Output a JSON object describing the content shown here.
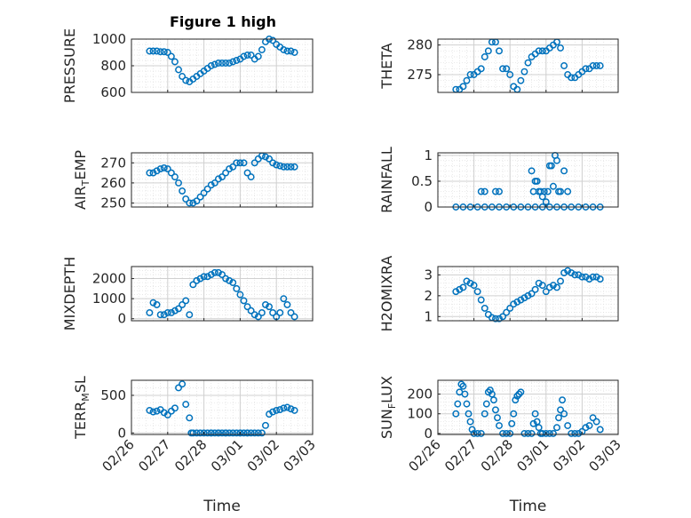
{
  "figure": {
    "title": "Figure 1 high"
  },
  "colors": {
    "marker": "#0072BD",
    "axis": "#262626",
    "grid": "#dfdfdf"
  },
  "chart_data": [
    {
      "type": "scatter",
      "ylabel": "PRESSURE",
      "title": "Figure 1 high",
      "ylim": [
        600,
        1000
      ],
      "yticks": [
        600,
        800,
        1000
      ],
      "ytick_labels": [
        "600",
        "800",
        "1000"
      ],
      "xlim": [
        0,
        5
      ],
      "x_tick_labels": [
        "02/26",
        "02/27",
        "02/28",
        "03/01",
        "03/02",
        "03/03"
      ],
      "x_tick_labels_visible": false,
      "grid": true,
      "x": [
        0.5,
        0.6,
        0.7,
        0.8,
        0.9,
        1.0,
        1.1,
        1.2,
        1.3,
        1.4,
        1.5,
        1.6,
        1.7,
        1.8,
        1.9,
        2.0,
        2.1,
        2.2,
        2.3,
        2.4,
        2.5,
        2.6,
        2.7,
        2.8,
        2.9,
        3.0,
        3.1,
        3.2,
        3.3,
        3.4,
        3.5,
        3.6,
        3.7,
        3.8,
        3.9,
        4.0,
        4.1,
        4.2,
        4.3,
        4.4,
        4.5
      ],
      "y": [
        910,
        910,
        910,
        905,
        905,
        900,
        870,
        830,
        770,
        720,
        690,
        680,
        700,
        720,
        740,
        760,
        780,
        800,
        810,
        820,
        820,
        820,
        820,
        830,
        840,
        850,
        870,
        880,
        880,
        850,
        870,
        920,
        980,
        1000,
        990,
        960,
        940,
        920,
        910,
        910,
        900
      ]
    },
    {
      "type": "scatter",
      "ylabel": "THETA",
      "ylim": [
        272,
        281
      ],
      "yticks": [
        275,
        280
      ],
      "ytick_labels": [
        "275",
        "280"
      ],
      "xlim": [
        0,
        5
      ],
      "x_tick_labels": [
        "02/26",
        "02/27",
        "02/28",
        "03/01",
        "03/02",
        "03/03"
      ],
      "x_tick_labels_visible": false,
      "grid": true,
      "x": [
        0.5,
        0.6,
        0.7,
        0.8,
        0.9,
        1.0,
        1.1,
        1.2,
        1.3,
        1.4,
        1.5,
        1.6,
        1.7,
        1.8,
        1.9,
        2.0,
        2.1,
        2.2,
        2.3,
        2.4,
        2.5,
        2.6,
        2.7,
        2.8,
        2.9,
        3.0,
        3.1,
        3.2,
        3.3,
        3.4,
        3.5,
        3.6,
        3.7,
        3.8,
        3.9,
        4.0,
        4.1,
        4.2,
        4.3,
        4.4,
        4.5
      ],
      "y": [
        272.5,
        272.5,
        273,
        274,
        275,
        275,
        275.5,
        276,
        278,
        279,
        280.5,
        280.5,
        279,
        276,
        276,
        275,
        273,
        272.5,
        274,
        275.5,
        277,
        278,
        278.5,
        279,
        279,
        279,
        279.5,
        280,
        280.5,
        279.5,
        276.5,
        275,
        274.5,
        274.5,
        275,
        275.5,
        276,
        276,
        276.5,
        276.5,
        276.5
      ]
    },
    {
      "type": "scatter",
      "ylabel": "AIR_TEMP",
      "ylim": [
        248,
        275
      ],
      "yticks": [
        250,
        260,
        270
      ],
      "ytick_labels": [
        "250",
        "260",
        "270"
      ],
      "xlim": [
        0,
        5
      ],
      "x_tick_labels": [
        "02/26",
        "02/27",
        "02/28",
        "03/01",
        "03/02",
        "03/03"
      ],
      "x_tick_labels_visible": false,
      "grid": true,
      "x": [
        0.5,
        0.6,
        0.7,
        0.8,
        0.9,
        1.0,
        1.1,
        1.2,
        1.3,
        1.4,
        1.5,
        1.6,
        1.7,
        1.8,
        1.9,
        2.0,
        2.1,
        2.2,
        2.3,
        2.4,
        2.5,
        2.6,
        2.7,
        2.8,
        2.9,
        3.0,
        3.1,
        3.2,
        3.3,
        3.4,
        3.5,
        3.6,
        3.7,
        3.8,
        3.9,
        4.0,
        4.1,
        4.2,
        4.3,
        4.4,
        4.5
      ],
      "y": [
        265,
        265,
        266,
        267,
        267.5,
        267,
        265,
        263,
        260,
        256,
        252,
        250,
        250,
        251,
        253,
        255,
        257,
        259,
        260,
        262,
        263,
        265,
        267,
        268,
        270,
        270,
        270,
        265,
        263,
        270,
        272,
        273.5,
        273,
        272,
        270,
        269,
        268.5,
        268,
        268,
        268,
        268
      ]
    },
    {
      "type": "scatter",
      "ylabel": "RAINFALL",
      "ylim": [
        0,
        1.05
      ],
      "yticks": [
        0,
        0.5,
        1
      ],
      "ytick_labels": [
        "0",
        "0.5",
        "1"
      ],
      "xlim": [
        0,
        5
      ],
      "x_tick_labels": [
        "02/26",
        "02/27",
        "02/28",
        "03/01",
        "03/02",
        "03/03"
      ],
      "x_tick_labels_visible": false,
      "grid": true,
      "x": [
        0.5,
        0.7,
        0.9,
        1.1,
        1.3,
        1.5,
        1.7,
        1.9,
        2.1,
        2.3,
        2.5,
        2.7,
        2.9,
        3.1,
        3.3,
        3.5,
        3.7,
        3.9,
        4.1,
        4.3,
        4.5,
        1.2,
        1.3,
        1.6,
        1.7,
        2.6,
        2.65,
        2.7,
        2.75,
        2.8,
        2.85,
        2.9,
        2.95,
        3.0,
        3.05,
        3.1,
        3.15,
        3.2,
        3.25,
        3.3,
        3.35,
        3.4,
        3.5,
        3.6
      ],
      "y": [
        0,
        0,
        0,
        0,
        0,
        0,
        0,
        0,
        0,
        0,
        0,
        0,
        0,
        0,
        0,
        0,
        0,
        0,
        0,
        0,
        0,
        0.3,
        0.3,
        0.3,
        0.3,
        0.7,
        0.3,
        0.5,
        0.5,
        0.3,
        0.3,
        0.2,
        0.3,
        0.1,
        0.3,
        0.8,
        0.8,
        0.4,
        1.0,
        0.9,
        0.3,
        0.3,
        0.7,
        0.3
      ]
    },
    {
      "type": "scatter",
      "ylabel": "MIXDEPTH",
      "ylim": [
        -100,
        2600
      ],
      "yticks": [
        0,
        1000,
        2000
      ],
      "ytick_labels": [
        "0",
        "1000",
        "2000"
      ],
      "xlim": [
        0,
        5
      ],
      "x_tick_labels": [
        "02/26",
        "02/27",
        "02/28",
        "03/01",
        "03/02",
        "03/03"
      ],
      "x_tick_labels_visible": false,
      "grid": true,
      "x": [
        0.5,
        0.6,
        0.7,
        0.8,
        0.9,
        1.0,
        1.1,
        1.2,
        1.3,
        1.4,
        1.5,
        1.6,
        1.7,
        1.8,
        1.9,
        2.0,
        2.1,
        2.2,
        2.3,
        2.4,
        2.5,
        2.6,
        2.7,
        2.8,
        2.9,
        3.0,
        3.1,
        3.2,
        3.3,
        3.4,
        3.5,
        3.6,
        3.7,
        3.8,
        3.9,
        4.0,
        4.1,
        4.2,
        4.3,
        4.4,
        4.5
      ],
      "y": [
        300,
        800,
        700,
        200,
        200,
        300,
        300,
        400,
        500,
        700,
        900,
        200,
        1700,
        1900,
        2000,
        2100,
        2100,
        2200,
        2300,
        2300,
        2200,
        2000,
        1900,
        1800,
        1500,
        1200,
        900,
        600,
        400,
        200,
        100,
        300,
        700,
        600,
        300,
        100,
        300,
        1000,
        700,
        300,
        100
      ]
    },
    {
      "type": "scatter",
      "ylabel": "H2OMIXRA",
      "ylim": [
        0.8,
        3.4
      ],
      "yticks": [
        1,
        2,
        3
      ],
      "ytick_labels": [
        "1",
        "2",
        "3"
      ],
      "xlim": [
        0,
        5
      ],
      "x_tick_labels": [
        "02/26",
        "02/27",
        "02/28",
        "03/01",
        "03/02",
        "03/03"
      ],
      "x_tick_labels_visible": false,
      "grid": true,
      "x": [
        0.5,
        0.6,
        0.7,
        0.8,
        0.9,
        1.0,
        1.1,
        1.2,
        1.3,
        1.4,
        1.5,
        1.6,
        1.7,
        1.8,
        1.9,
        2.0,
        2.1,
        2.2,
        2.3,
        2.4,
        2.5,
        2.6,
        2.7,
        2.8,
        2.9,
        3.0,
        3.1,
        3.2,
        3.3,
        3.4,
        3.5,
        3.6,
        3.7,
        3.8,
        3.9,
        4.0,
        4.1,
        4.2,
        4.3,
        4.4,
        4.5
      ],
      "y": [
        2.2,
        2.3,
        2.4,
        2.7,
        2.6,
        2.5,
        2.2,
        1.8,
        1.4,
        1.1,
        0.95,
        0.9,
        0.9,
        1.0,
        1.2,
        1.4,
        1.6,
        1.7,
        1.8,
        1.9,
        2.0,
        2.1,
        2.3,
        2.6,
        2.5,
        2.2,
        2.4,
        2.5,
        2.4,
        2.7,
        3.1,
        3.2,
        3.1,
        3.0,
        3.0,
        2.9,
        2.9,
        2.8,
        2.9,
        2.9,
        2.8
      ]
    },
    {
      "type": "scatter",
      "ylabel": "TERR_MSL",
      "ylim": [
        -20,
        700
      ],
      "yticks": [
        0,
        500
      ],
      "ytick_labels": [
        "0",
        "500"
      ],
      "xlim": [
        0,
        5
      ],
      "x_tick_labels": [
        "02/26",
        "02/27",
        "02/28",
        "03/01",
        "03/02",
        "03/03"
      ],
      "x_tick_labels_visible": true,
      "xlabel": "Time",
      "grid": true,
      "x": [
        0.5,
        0.6,
        0.7,
        0.8,
        0.9,
        1.0,
        1.1,
        1.2,
        1.3,
        1.4,
        1.5,
        1.6,
        1.7,
        1.8,
        1.9,
        2.0,
        2.1,
        2.2,
        2.3,
        2.4,
        2.5,
        2.6,
        2.7,
        2.8,
        2.9,
        3.0,
        3.1,
        3.2,
        3.3,
        3.4,
        3.5,
        3.6,
        3.7,
        3.8,
        3.9,
        4.0,
        4.1,
        4.2,
        4.3,
        4.4,
        4.5,
        1.65,
        2.2,
        2.4,
        2.6,
        3.0,
        3.2
      ],
      "y": [
        300,
        280,
        290,
        310,
        270,
        240,
        290,
        330,
        600,
        650,
        380,
        200,
        0,
        0,
        0,
        0,
        0,
        0,
        0,
        0,
        0,
        0,
        0,
        0,
        0,
        0,
        0,
        0,
        0,
        0,
        0,
        0,
        100,
        250,
        280,
        300,
        310,
        330,
        340,
        320,
        300,
        0,
        0,
        0,
        0,
        0,
        0
      ]
    },
    {
      "type": "scatter",
      "ylabel": "SUN_FLUX",
      "ylim": [
        -5,
        270
      ],
      "yticks": [
        0,
        100,
        200
      ],
      "ytick_labels": [
        "0",
        "100",
        "200"
      ],
      "xlim": [
        0,
        5
      ],
      "x_tick_labels": [
        "02/26",
        "02/27",
        "02/28",
        "03/01",
        "03/02",
        "03/03"
      ],
      "x_tick_labels_visible": true,
      "xlabel": "Time",
      "grid": true,
      "x": [
        0.5,
        0.55,
        0.6,
        0.65,
        0.7,
        0.75,
        0.8,
        0.85,
        0.9,
        0.95,
        1.0,
        1.1,
        1.2,
        1.3,
        1.35,
        1.4,
        1.45,
        1.5,
        1.55,
        1.6,
        1.65,
        1.7,
        1.8,
        1.9,
        2.0,
        2.05,
        2.1,
        2.15,
        2.2,
        2.25,
        2.3,
        2.4,
        2.5,
        2.6,
        2.65,
        2.7,
        2.75,
        2.8,
        2.85,
        2.9,
        3.0,
        3.1,
        3.2,
        3.3,
        3.35,
        3.4,
        3.45,
        3.5,
        3.6,
        3.7,
        3.8,
        3.9,
        4.0,
        4.1,
        4.2,
        4.3,
        4.4,
        4.5
      ],
      "y": [
        100,
        150,
        210,
        250,
        240,
        200,
        150,
        100,
        60,
        20,
        0,
        0,
        0,
        100,
        150,
        210,
        220,
        200,
        170,
        120,
        80,
        40,
        0,
        0,
        0,
        50,
        100,
        170,
        190,
        200,
        210,
        0,
        0,
        0,
        50,
        100,
        60,
        30,
        0,
        0,
        0,
        0,
        0,
        30,
        80,
        120,
        170,
        100,
        40,
        0,
        0,
        0,
        10,
        30,
        40,
        80,
        60,
        20
      ]
    }
  ]
}
